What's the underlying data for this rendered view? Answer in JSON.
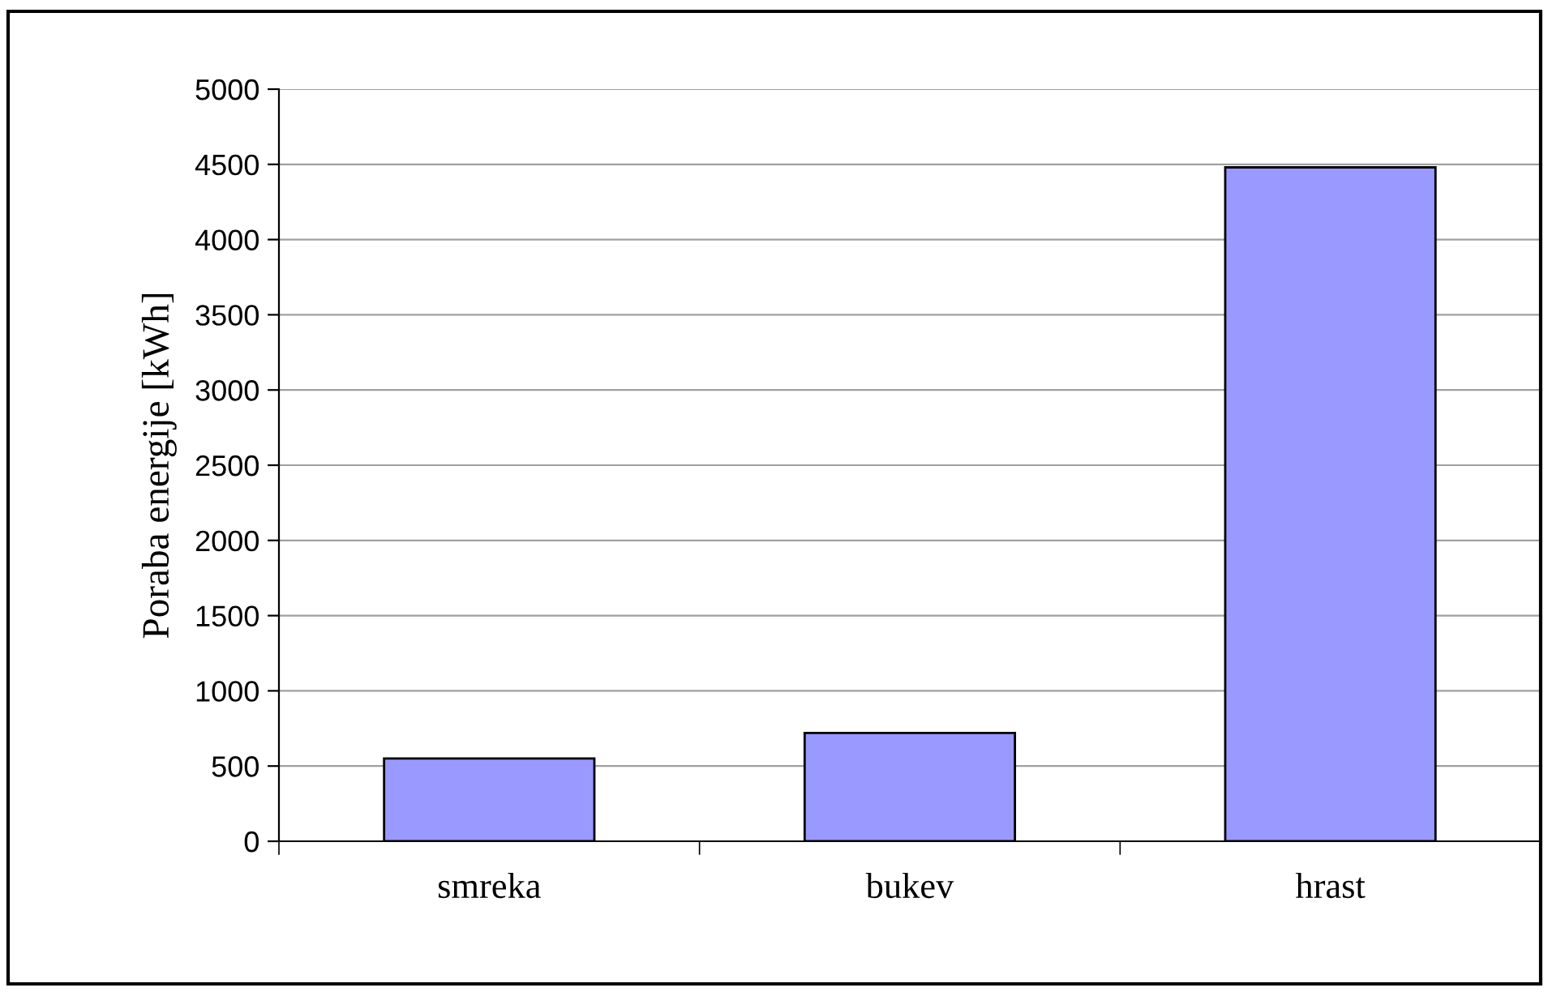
{
  "chart_data": {
    "type": "bar",
    "ylabel": "Poraba energije [kWh]",
    "categories": [
      "smreka",
      "bukev",
      "hrast"
    ],
    "values": [
      550,
      720,
      4480
    ],
    "color": "#9999ff",
    "ylim": [
      0,
      5000
    ],
    "yticks": [
      0,
      500,
      1000,
      1500,
      2000,
      2500,
      3000,
      3500,
      4000,
      4500,
      5000
    ],
    "grid": "y",
    "legend": false
  }
}
